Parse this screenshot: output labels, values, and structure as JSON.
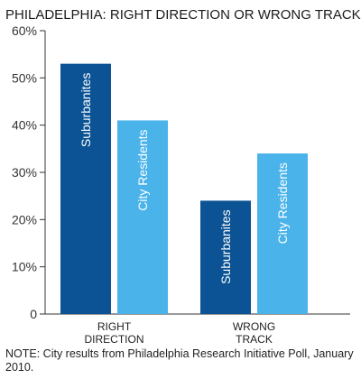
{
  "chart_data": {
    "type": "bar",
    "title": "PHILADELPHIA: RIGHT DIRECTION OR WRONG TRACK?",
    "categories": [
      "RIGHT DIRECTION",
      "WRONG TRACK"
    ],
    "category_label_lines": [
      [
        "RIGHT",
        "DIRECTION"
      ],
      [
        "WRONG",
        "TRACK"
      ]
    ],
    "series": [
      {
        "name": "Suburbanites",
        "values": [
          53,
          24
        ],
        "color": "#0b5394"
      },
      {
        "name": "City Residents",
        "values": [
          41,
          34
        ],
        "color": "#4ab3ea"
      }
    ],
    "yticks": [
      "0",
      "10%",
      "20%",
      "30%",
      "40%",
      "50%",
      "60%"
    ],
    "ylim": [
      0,
      60
    ],
    "grid": false,
    "legend": "none (series names printed inside bars)",
    "note": "NOTE: City results from Philadelphia Research Initiative Poll, January 2010."
  }
}
